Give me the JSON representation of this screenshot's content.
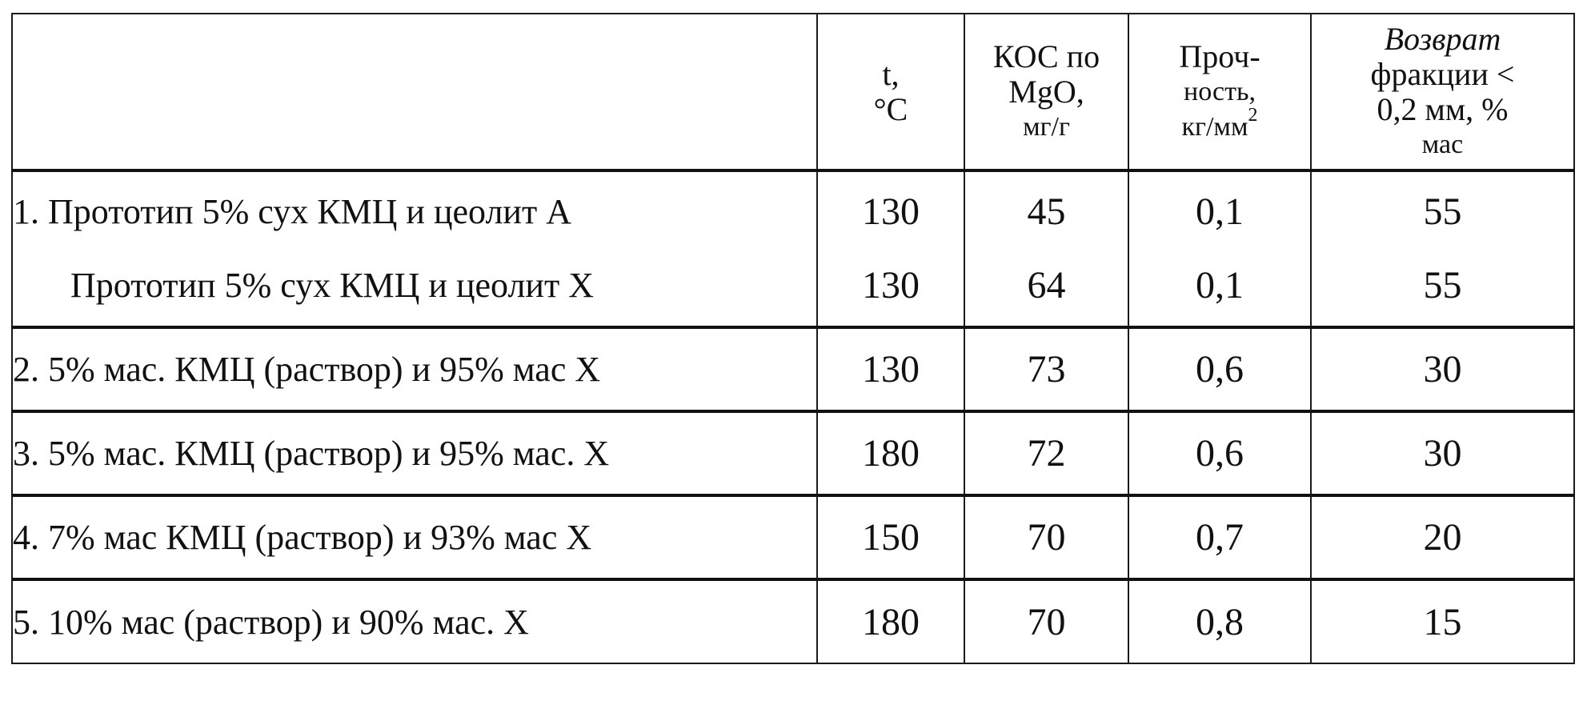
{
  "table": {
    "headers": {
      "name": "",
      "t": [
        "t,",
        "°C"
      ],
      "kos": [
        "КОС по",
        "MgO,",
        "мг/г"
      ],
      "strength": [
        "Проч-",
        "ность,",
        "кг/мм",
        "2"
      ],
      "return": [
        "Возврат",
        "фракции <",
        "0,2 мм, %",
        "мас"
      ]
    },
    "rows": [
      {
        "lines": [
          {
            "name": "1. Прототип 5% сух КМЦ и цеолит А",
            "t": "130",
            "kos": "45",
            "strength": "0,1",
            "return": "55"
          },
          {
            "name": "Прототип 5% сух КМЦ и цеолит Х",
            "t": "130",
            "kos": "64",
            "strength": "0,1",
            "return": "55"
          }
        ]
      },
      {
        "name": "2. 5%  мас. КМЦ (раствор) и 95%  мас  Х",
        "t": "130",
        "kos": "73",
        "strength": "0,6",
        "return": "30"
      },
      {
        "name": "3. 5% мас. КМЦ (раствор) и 95%  мас.  Х",
        "t": "180",
        "kos": "72",
        "strength": "0,6",
        "return": "30"
      },
      {
        "name": "4. 7% мас  КМЦ (раствор)  и 93% мас  Х",
        "t": "150",
        "kos": "70",
        "strength": "0,7",
        "return": "20"
      },
      {
        "name": "5. 10% мас  (раствор) и 90%  мас. Х",
        "t": "180",
        "kos": "70",
        "strength": "0,8",
        "return": "15"
      }
    ]
  }
}
